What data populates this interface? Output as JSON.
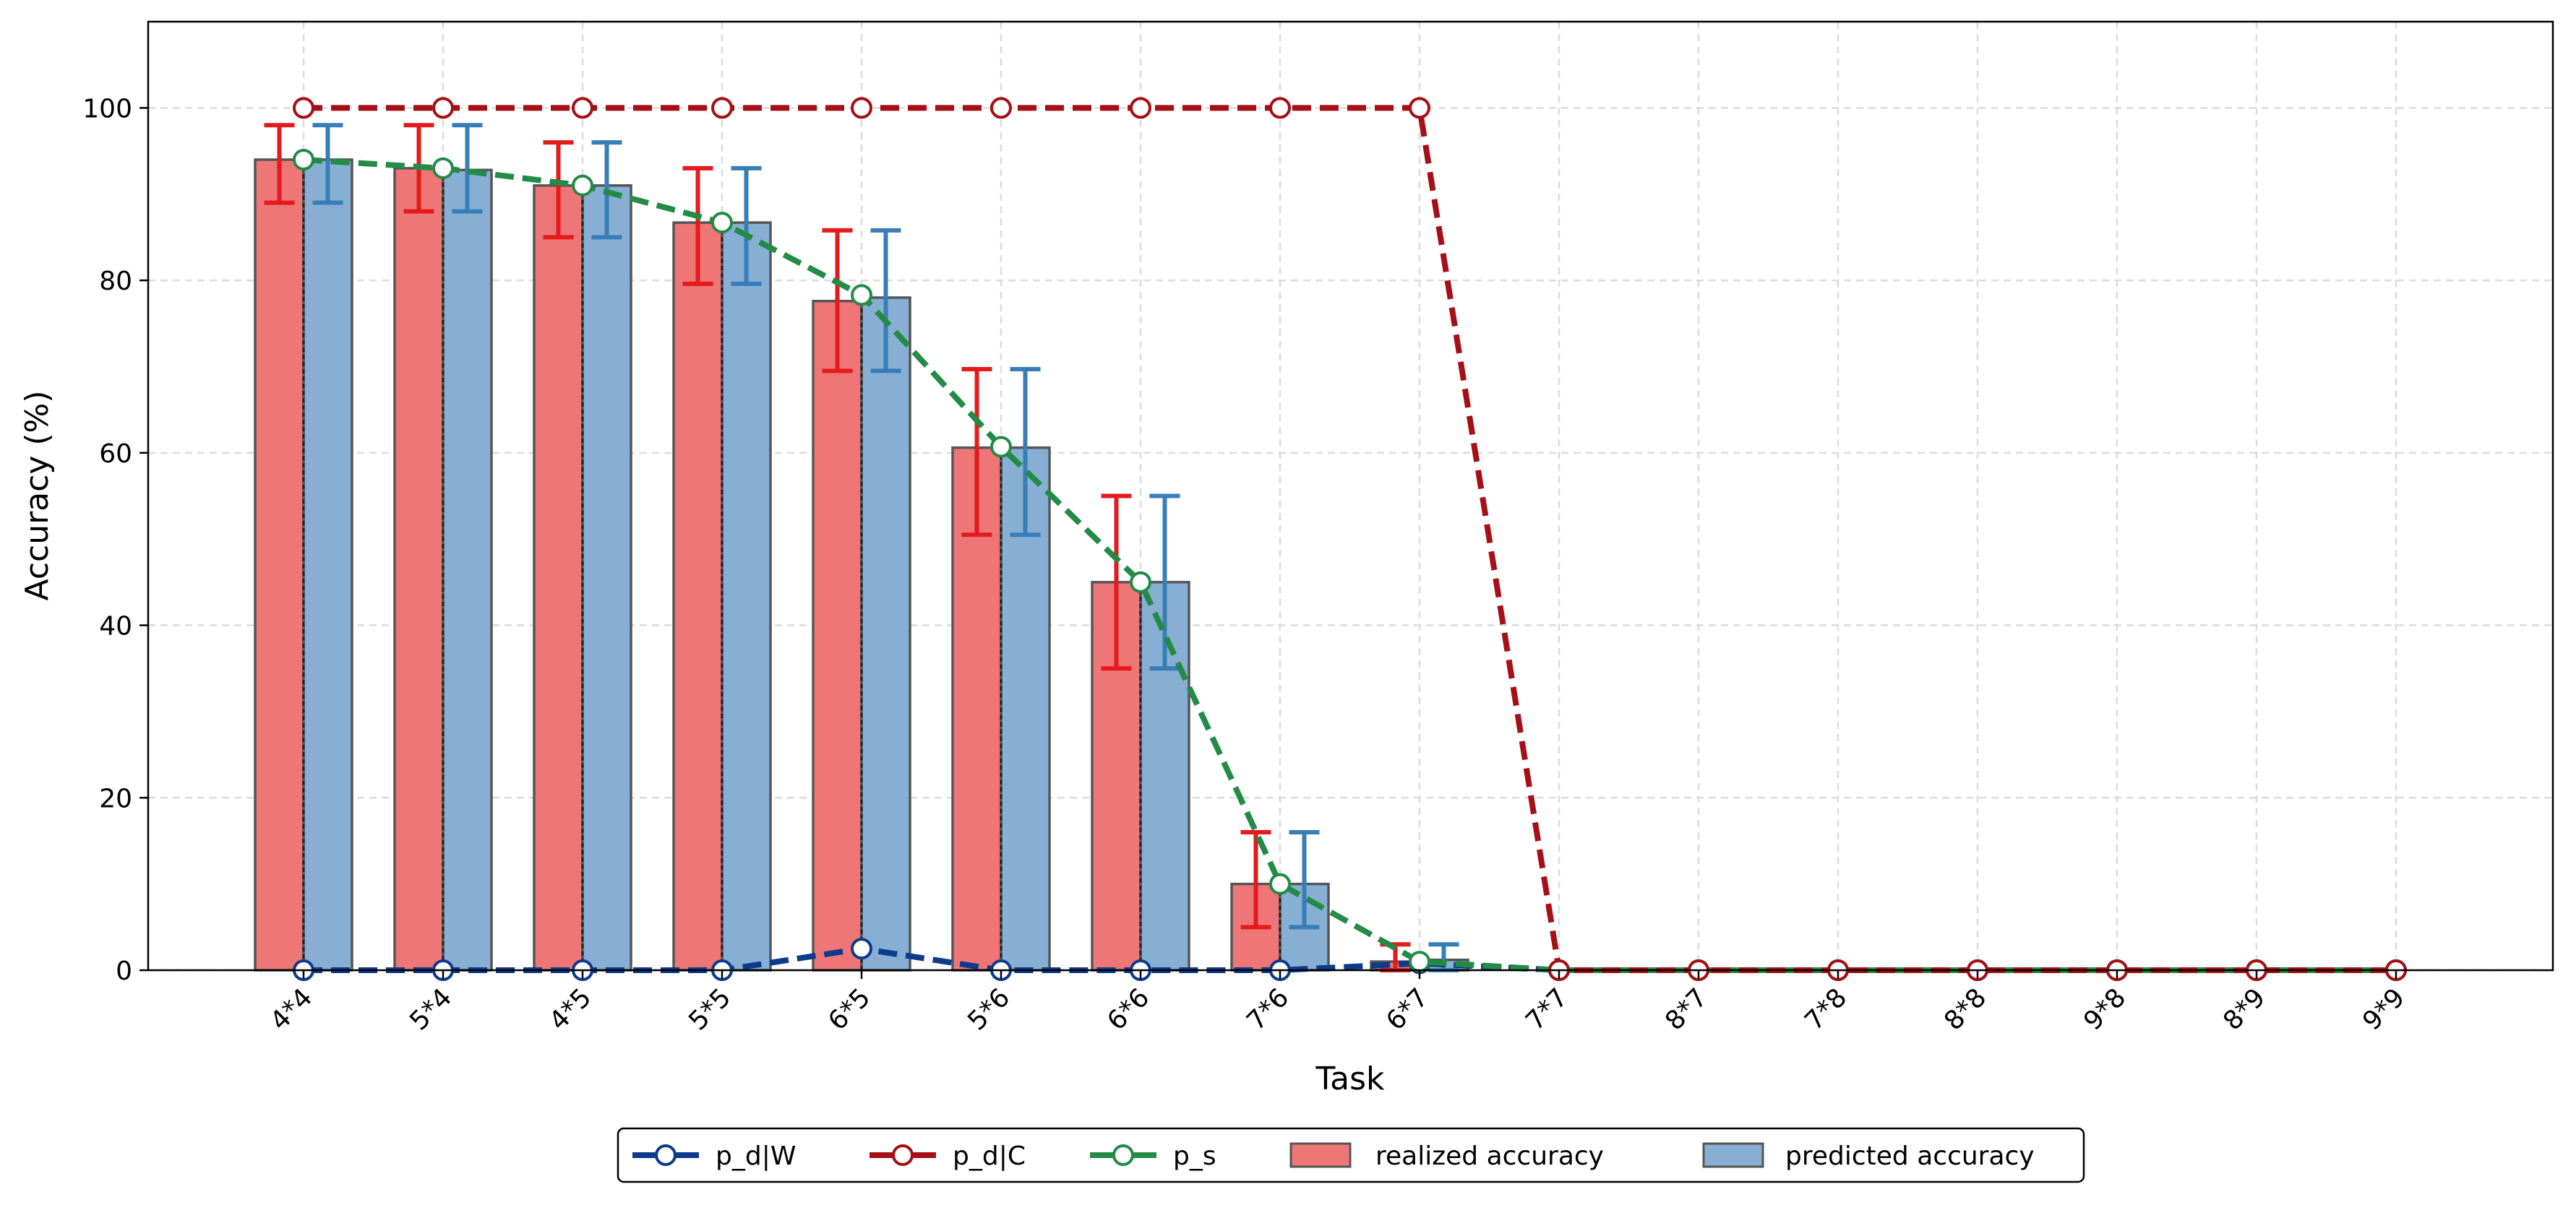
{
  "chart_data": {
    "type": "bar",
    "title": "",
    "xlabel": "Task",
    "ylabel": "Accuracy (%)",
    "ylim": [
      0,
      110
    ],
    "yticks": [
      0,
      20,
      40,
      60,
      80,
      100
    ],
    "grid": true,
    "legend_position": "bottom-center",
    "categories": [
      "4*4",
      "5*4",
      "4*5",
      "5*5",
      "6*5",
      "5*6",
      "6*6",
      "7*6",
      "6*7",
      "7*7",
      "8*7",
      "7*8",
      "8*8",
      "9*8",
      "8*9",
      "9*9"
    ],
    "bars": [
      {
        "name": "realized accuracy",
        "color": "#ee7677",
        "err_color": "#e41a1c",
        "values": [
          94,
          93,
          91,
          86.7,
          77.6,
          60.6,
          45,
          10,
          1,
          0,
          0,
          0,
          0,
          0,
          0,
          0
        ],
        "err_low": [
          89,
          88,
          85,
          79.6,
          69.5,
          50.5,
          35,
          5,
          0,
          0,
          0,
          0,
          0,
          0,
          0,
          0
        ],
        "err_high": [
          98,
          98,
          96,
          93,
          85.8,
          69.7,
          55,
          16,
          3,
          0,
          0,
          0,
          0,
          0,
          0,
          0
        ]
      },
      {
        "name": "predicted accuracy",
        "color": "#87afd4",
        "err_color": "#377eb8",
        "values": [
          94,
          92.8,
          91,
          86.7,
          78,
          60.6,
          45,
          10,
          1.2,
          0,
          0,
          0,
          0,
          0,
          0,
          0
        ],
        "err_low": [
          89,
          88,
          85,
          79.6,
          69.5,
          50.5,
          35,
          5,
          0,
          0,
          0,
          0,
          0,
          0,
          0,
          0
        ],
        "err_high": [
          98,
          98,
          96,
          93,
          85.8,
          69.7,
          55,
          16,
          3,
          0,
          0,
          0,
          0,
          0,
          0,
          0
        ]
      }
    ],
    "series": [
      {
        "name": "p_d|W",
        "color": "#0c3a8c",
        "values": [
          0,
          0,
          0,
          0,
          2.5,
          0,
          0,
          0,
          0.8,
          0,
          0,
          0,
          0,
          0,
          0,
          0
        ]
      },
      {
        "name": "p_d|C",
        "color": "#a50f15",
        "values": [
          100,
          100,
          100,
          100,
          100,
          100,
          100,
          100,
          100,
          0,
          0,
          0,
          0,
          0,
          0,
          0
        ]
      },
      {
        "name": "p_s",
        "color": "#238b45",
        "values": [
          94,
          93,
          91,
          86.7,
          78.3,
          60.7,
          45,
          10,
          1,
          0,
          0,
          0,
          0,
          0,
          0,
          0
        ]
      }
    ]
  }
}
